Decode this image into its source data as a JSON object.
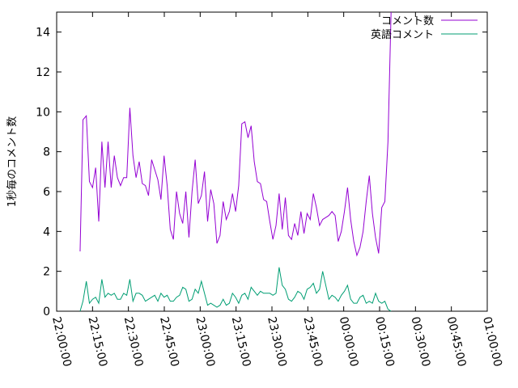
{
  "chart_data": {
    "type": "line",
    "title": "",
    "xlabel": "",
    "ylabel": "1秒毎のコメント数",
    "x_tick_labels": [
      "22:00:00",
      "22:15:00",
      "22:30:00",
      "22:45:00",
      "23:00:00",
      "23:15:00",
      "23:30:00",
      "23:45:00",
      "00:00:00",
      "00:15:00",
      "00:30:00",
      "00:45:00",
      "01:00:00"
    ],
    "y_ticks": [
      0,
      2,
      4,
      6,
      8,
      10,
      12,
      14
    ],
    "xlim": [
      0,
      180
    ],
    "ylim": [
      0,
      15
    ],
    "legend_position": "top-right",
    "grid": false,
    "series": [
      {
        "name": "コメント数",
        "color": "#9400d3",
        "points": [
          [
            9.8,
            3.0
          ],
          [
            11.0,
            9.6
          ],
          [
            12.4,
            9.8
          ],
          [
            13.7,
            6.5
          ],
          [
            15.0,
            6.2
          ],
          [
            16.3,
            7.2
          ],
          [
            17.6,
            4.5
          ],
          [
            18.9,
            8.5
          ],
          [
            20.2,
            6.2
          ],
          [
            21.5,
            8.5
          ],
          [
            22.8,
            6.2
          ],
          [
            24.1,
            7.8
          ],
          [
            25.4,
            6.7
          ],
          [
            26.7,
            6.3
          ],
          [
            28.0,
            6.7
          ],
          [
            29.3,
            6.7
          ],
          [
            30.6,
            10.2
          ],
          [
            31.9,
            7.8
          ],
          [
            33.2,
            6.7
          ],
          [
            34.5,
            7.5
          ],
          [
            35.8,
            6.4
          ],
          [
            37.1,
            6.3
          ],
          [
            38.4,
            5.8
          ],
          [
            39.7,
            7.6
          ],
          [
            41.0,
            7.1
          ],
          [
            42.3,
            6.6
          ],
          [
            43.6,
            5.6
          ],
          [
            44.9,
            7.8
          ],
          [
            46.2,
            6.3
          ],
          [
            47.5,
            4.1
          ],
          [
            48.8,
            3.6
          ],
          [
            50.1,
            6.0
          ],
          [
            51.4,
            4.9
          ],
          [
            52.7,
            4.4
          ],
          [
            54.0,
            6.0
          ],
          [
            55.3,
            3.7
          ],
          [
            56.6,
            6.0
          ],
          [
            57.9,
            7.6
          ],
          [
            59.2,
            5.4
          ],
          [
            60.5,
            5.8
          ],
          [
            61.8,
            7.0
          ],
          [
            63.1,
            4.5
          ],
          [
            64.4,
            6.1
          ],
          [
            65.7,
            5.4
          ],
          [
            67.0,
            3.4
          ],
          [
            68.3,
            3.8
          ],
          [
            69.6,
            5.5
          ],
          [
            70.9,
            4.6
          ],
          [
            72.2,
            5.0
          ],
          [
            73.5,
            5.9
          ],
          [
            74.8,
            5.0
          ],
          [
            76.1,
            6.3
          ],
          [
            77.4,
            9.4
          ],
          [
            78.7,
            9.5
          ],
          [
            80.0,
            8.7
          ],
          [
            81.3,
            9.3
          ],
          [
            82.6,
            7.5
          ],
          [
            83.9,
            6.5
          ],
          [
            85.2,
            6.4
          ],
          [
            86.5,
            5.6
          ],
          [
            87.8,
            5.5
          ],
          [
            89.1,
            4.5
          ],
          [
            90.4,
            3.6
          ],
          [
            91.7,
            4.3
          ],
          [
            93.0,
            5.9
          ],
          [
            94.3,
            4.1
          ],
          [
            95.6,
            5.7
          ],
          [
            96.9,
            3.8
          ],
          [
            98.2,
            3.6
          ],
          [
            99.5,
            4.4
          ],
          [
            100.8,
            3.8
          ],
          [
            102.1,
            5.0
          ],
          [
            103.4,
            3.9
          ],
          [
            104.7,
            4.9
          ],
          [
            106.0,
            4.6
          ],
          [
            107.3,
            5.9
          ],
          [
            108.6,
            5.2
          ],
          [
            109.9,
            4.3
          ],
          [
            111.2,
            4.6
          ],
          [
            112.5,
            4.7
          ],
          [
            113.8,
            4.8
          ],
          [
            115.1,
            5.0
          ],
          [
            116.4,
            4.8
          ],
          [
            117.7,
            3.5
          ],
          [
            119.0,
            4.0
          ],
          [
            120.3,
            5.0
          ],
          [
            121.6,
            6.2
          ],
          [
            122.9,
            4.6
          ],
          [
            124.2,
            3.5
          ],
          [
            125.5,
            2.8
          ],
          [
            126.8,
            3.2
          ],
          [
            128.1,
            4.0
          ],
          [
            129.4,
            5.5
          ],
          [
            130.7,
            6.8
          ],
          [
            132.0,
            4.9
          ],
          [
            133.3,
            3.7
          ],
          [
            134.6,
            2.9
          ],
          [
            135.9,
            5.2
          ],
          [
            137.2,
            5.5
          ],
          [
            138.5,
            8.5
          ],
          [
            139.8,
            15.0
          ]
        ]
      },
      {
        "name": "英語コメント",
        "color": "#009e73",
        "points": [
          [
            9.8,
            0.0
          ],
          [
            11.0,
            0.5
          ],
          [
            12.4,
            1.5
          ],
          [
            13.7,
            0.4
          ],
          [
            15.0,
            0.6
          ],
          [
            16.3,
            0.7
          ],
          [
            17.6,
            0.4
          ],
          [
            18.9,
            1.6
          ],
          [
            20.2,
            0.7
          ],
          [
            21.5,
            0.9
          ],
          [
            22.8,
            0.8
          ],
          [
            24.1,
            0.9
          ],
          [
            25.4,
            0.6
          ],
          [
            26.7,
            0.6
          ],
          [
            28.0,
            0.9
          ],
          [
            29.3,
            0.8
          ],
          [
            30.6,
            1.6
          ],
          [
            31.9,
            0.5
          ],
          [
            33.2,
            0.9
          ],
          [
            34.5,
            0.9
          ],
          [
            35.8,
            0.8
          ],
          [
            37.1,
            0.5
          ],
          [
            38.4,
            0.6
          ],
          [
            39.7,
            0.7
          ],
          [
            41.0,
            0.8
          ],
          [
            42.3,
            0.5
          ],
          [
            43.6,
            0.9
          ],
          [
            44.9,
            0.7
          ],
          [
            46.2,
            0.8
          ],
          [
            47.5,
            0.5
          ],
          [
            48.8,
            0.5
          ],
          [
            50.1,
            0.7
          ],
          [
            51.4,
            0.8
          ],
          [
            52.7,
            1.2
          ],
          [
            54.0,
            1.1
          ],
          [
            55.3,
            0.5
          ],
          [
            56.6,
            0.6
          ],
          [
            57.9,
            1.1
          ],
          [
            59.2,
            0.9
          ],
          [
            60.5,
            1.5
          ],
          [
            61.8,
            0.9
          ],
          [
            63.1,
            0.3
          ],
          [
            64.4,
            0.4
          ],
          [
            65.7,
            0.3
          ],
          [
            67.0,
            0.2
          ],
          [
            68.3,
            0.3
          ],
          [
            69.6,
            0.6
          ],
          [
            70.9,
            0.3
          ],
          [
            72.2,
            0.4
          ],
          [
            73.5,
            0.9
          ],
          [
            74.8,
            0.7
          ],
          [
            76.1,
            0.4
          ],
          [
            77.4,
            0.8
          ],
          [
            78.7,
            0.9
          ],
          [
            80.0,
            0.6
          ],
          [
            81.3,
            1.2
          ],
          [
            82.6,
            1.0
          ],
          [
            83.9,
            0.8
          ],
          [
            85.2,
            1.0
          ],
          [
            86.5,
            0.9
          ],
          [
            87.8,
            0.9
          ],
          [
            89.1,
            0.9
          ],
          [
            90.4,
            0.8
          ],
          [
            91.7,
            0.9
          ],
          [
            93.0,
            2.2
          ],
          [
            94.3,
            1.3
          ],
          [
            95.6,
            1.1
          ],
          [
            96.9,
            0.6
          ],
          [
            98.2,
            0.5
          ],
          [
            99.5,
            0.7
          ],
          [
            100.8,
            1.0
          ],
          [
            102.1,
            0.9
          ],
          [
            103.4,
            0.6
          ],
          [
            104.7,
            1.1
          ],
          [
            106.0,
            1.2
          ],
          [
            107.3,
            1.4
          ],
          [
            108.6,
            0.9
          ],
          [
            109.9,
            1.1
          ],
          [
            111.2,
            2.0
          ],
          [
            112.5,
            1.3
          ],
          [
            113.8,
            0.6
          ],
          [
            115.1,
            0.8
          ],
          [
            116.4,
            0.7
          ],
          [
            117.7,
            0.5
          ],
          [
            119.0,
            0.8
          ],
          [
            120.3,
            1.0
          ],
          [
            121.6,
            1.3
          ],
          [
            122.9,
            0.6
          ],
          [
            124.2,
            0.4
          ],
          [
            125.5,
            0.4
          ],
          [
            126.8,
            0.7
          ],
          [
            128.1,
            0.8
          ],
          [
            129.4,
            0.4
          ],
          [
            130.7,
            0.5
          ],
          [
            132.0,
            0.4
          ],
          [
            133.3,
            0.9
          ],
          [
            134.6,
            0.5
          ],
          [
            135.9,
            0.4
          ],
          [
            137.2,
            0.5
          ],
          [
            138.5,
            0.1
          ],
          [
            139.8,
            0.0
          ]
        ]
      }
    ]
  }
}
